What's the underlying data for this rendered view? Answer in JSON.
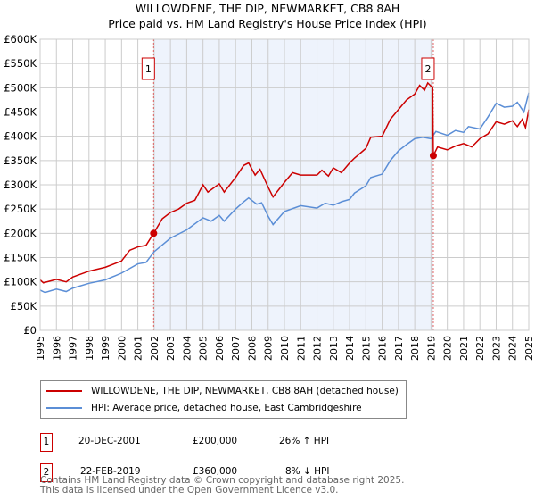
{
  "title_line1": "WILLOWDENE, THE DIP, NEWMARKET, CB8 8AH",
  "title_line2": "Price paid vs. HM Land Registry's House Price Index (HPI)",
  "chart_data": {
    "type": "line",
    "title": "WILLOWDENE, THE DIP, NEWMARKET, CB8 8AH — Price paid vs. HM Land Registry's House Price Index (HPI)",
    "xlim": [
      1995,
      2025
    ],
    "ylim": [
      0,
      600000
    ],
    "yticks": [
      0,
      50000,
      100000,
      150000,
      200000,
      250000,
      300000,
      350000,
      400000,
      450000,
      500000,
      550000,
      600000
    ],
    "ytick_labels": [
      "£0",
      "£50K",
      "£100K",
      "£150K",
      "£200K",
      "£250K",
      "£300K",
      "£350K",
      "£400K",
      "£450K",
      "£500K",
      "£550K",
      "£600K"
    ],
    "xticks": [
      "1995",
      "1996",
      "1997",
      "1998",
      "1999",
      "2000",
      "2001",
      "2002",
      "2003",
      "2004",
      "2005",
      "2006",
      "2007",
      "2008",
      "2009",
      "2010",
      "2011",
      "2012",
      "2013",
      "2014",
      "2015",
      "2016",
      "2017",
      "2018",
      "2019",
      "2020",
      "2021",
      "2022",
      "2023",
      "2024",
      "2025"
    ],
    "grid": true,
    "shaded_range": [
      2001.97,
      2019.14
    ],
    "series": [
      {
        "name": "WILLOWDENE, THE DIP, NEWMARKET, CB8 8AH (detached house)",
        "color": "#cc0000",
        "x": [
          1995,
          1995.2,
          1996,
          1996.6,
          1997,
          1998,
          1999,
          2000,
          2000.5,
          2001,
          2001.5,
          2001.97,
          2002.5,
          2003,
          2003.5,
          2004,
          2004.5,
          2005,
          2005.3,
          2006,
          2006.3,
          2007,
          2007.5,
          2007.8,
          2008.2,
          2008.5,
          2009,
          2009.3,
          2010,
          2010.5,
          2011,
          2012,
          2012.3,
          2012.7,
          2013,
          2013.5,
          2014,
          2014.3,
          2015,
          2015.3,
          2016,
          2016.5,
          2017,
          2017.5,
          2018,
          2018.3,
          2018.6,
          2018.8,
          2019.1,
          2019.14,
          2019.4,
          2020,
          2020.5,
          2021,
          2021.5,
          2022,
          2022.5,
          2023,
          2023.5,
          2024,
          2024.3,
          2024.6,
          2024.8,
          2025
        ],
        "y": [
          104000,
          98000,
          105000,
          100000,
          110000,
          122000,
          130000,
          143000,
          165000,
          172000,
          175000,
          200000,
          230000,
          243000,
          250000,
          262000,
          268000,
          300000,
          285000,
          302000,
          285000,
          315000,
          340000,
          345000,
          320000,
          332000,
          295000,
          275000,
          305000,
          325000,
          320000,
          320000,
          330000,
          318000,
          335000,
          325000,
          345000,
          355000,
          375000,
          398000,
          400000,
          435000,
          455000,
          475000,
          487000,
          505000,
          495000,
          510000,
          500000,
          360000,
          378000,
          372000,
          380000,
          385000,
          378000,
          395000,
          405000,
          430000,
          425000,
          432000,
          420000,
          435000,
          418000,
          455000
        ]
      },
      {
        "name": "HPI: Average price, detached house, East Cambridgeshire",
        "color": "#5b8ed6",
        "x": [
          1995,
          1995.3,
          1996,
          1996.6,
          1997,
          1998,
          1999,
          2000,
          2001,
          2001.5,
          2002,
          2003,
          2004,
          2005,
          2005.5,
          2006,
          2006.3,
          2007,
          2007.5,
          2007.8,
          2008.3,
          2008.6,
          2009,
          2009.3,
          2010,
          2011,
          2012,
          2012.5,
          2013,
          2013.5,
          2014,
          2014.3,
          2015,
          2015.3,
          2016,
          2016.5,
          2017,
          2017.5,
          2018,
          2018.5,
          2019,
          2019.3,
          2020,
          2020.5,
          2021,
          2021.3,
          2022,
          2022.5,
          2023,
          2023.5,
          2024,
          2024.3,
          2024.7,
          2025
        ],
        "y": [
          83000,
          78000,
          85000,
          80000,
          87000,
          97000,
          104000,
          118000,
          137000,
          140000,
          162000,
          190000,
          207000,
          232000,
          225000,
          237000,
          225000,
          250000,
          265000,
          273000,
          260000,
          263000,
          235000,
          218000,
          245000,
          257000,
          252000,
          262000,
          258000,
          265000,
          270000,
          283000,
          298000,
          315000,
          322000,
          350000,
          370000,
          383000,
          395000,
          398000,
          395000,
          410000,
          402000,
          412000,
          408000,
          420000,
          415000,
          440000,
          468000,
          460000,
          462000,
          470000,
          450000,
          490000
        ]
      }
    ],
    "sales": [
      {
        "label": "1",
        "x": 2001.97,
        "y": 200000
      },
      {
        "label": "2",
        "x": 2019.14,
        "y": 360000
      }
    ]
  },
  "legend": {
    "red": "WILLOWDENE, THE DIP, NEWMARKET, CB8 8AH (detached house)",
    "blue": "HPI: Average price, detached house, East Cambridgeshire"
  },
  "transactions": [
    {
      "num": "1",
      "date": "20-DEC-2001",
      "price": "£200,000",
      "hpi": "26% ↑ HPI"
    },
    {
      "num": "2",
      "date": "22-FEB-2019",
      "price": "£360,000",
      "hpi": "8% ↓ HPI"
    }
  ],
  "footer1": "Contains HM Land Registry data © Crown copyright and database right 2025.",
  "footer2": "This data is licensed under the Open Government Licence v3.0."
}
